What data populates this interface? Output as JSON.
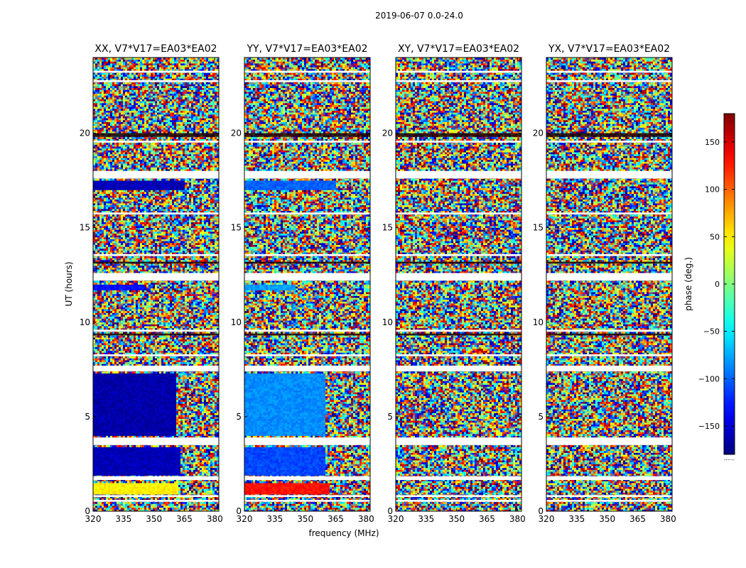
{
  "figure_title": "2019-06-07 0.0-24.0",
  "xlabel": "frequency (MHz)",
  "ylabel": "UT (hours)",
  "colorbar": {
    "label": "phase (deg.)",
    "range": [
      -180,
      180
    ],
    "ticks": [
      150,
      100,
      50,
      0,
      -50,
      -100,
      -150
    ],
    "tick_labels": [
      "150",
      "100",
      "50",
      "0",
      "−50",
      "−100",
      "−150"
    ],
    "colormap": "jet",
    "footer": "......"
  },
  "chart_data": [
    {
      "type": "heatmap",
      "title": "XX, V7*V17=EA03*EA02",
      "xlim": [
        320,
        382
      ],
      "ylim": [
        0,
        24
      ],
      "xticks": [
        320,
        335,
        350,
        365,
        380
      ],
      "yticks": [
        0,
        5,
        10,
        15,
        20
      ],
      "z": "phase (deg.)",
      "coherent_regions": [
        {
          "t": [
            0.9,
            1.5
          ],
          "f": [
            320,
            362
          ],
          "phase": 50
        },
        {
          "t": [
            1.9,
            3.4
          ],
          "f": [
            320,
            363
          ],
          "phase": -160
        },
        {
          "t": [
            4.0,
            7.3
          ],
          "f": [
            320,
            361
          ],
          "phase": -165
        },
        {
          "t": [
            11.7,
            12.0
          ],
          "f": [
            320,
            345
          ],
          "phase": -130
        },
        {
          "t": [
            17.0,
            17.5
          ],
          "f": [
            320,
            365
          ],
          "phase": -160
        }
      ]
    },
    {
      "type": "heatmap",
      "title": "YY, V7*V17=EA03*EA02",
      "xlim": [
        320,
        382
      ],
      "ylim": [
        0,
        24
      ],
      "xticks": [
        320,
        335,
        350,
        365,
        380
      ],
      "yticks": [
        0,
        5,
        10,
        15,
        20
      ],
      "z": "phase (deg.)",
      "coherent_regions": [
        {
          "t": [
            0.9,
            1.5
          ],
          "f": [
            320,
            362
          ],
          "phase": 130
        },
        {
          "t": [
            1.9,
            3.4
          ],
          "f": [
            320,
            360
          ],
          "phase": -110
        },
        {
          "t": [
            4.0,
            7.3
          ],
          "f": [
            320,
            360
          ],
          "phase": -85
        },
        {
          "t": [
            11.7,
            12.0
          ],
          "f": [
            320,
            345
          ],
          "phase": -80
        },
        {
          "t": [
            17.0,
            17.5
          ],
          "f": [
            320,
            365
          ],
          "phase": -100
        }
      ]
    },
    {
      "type": "heatmap",
      "title": "XY, V7*V17=EA03*EA02",
      "xlim": [
        320,
        382
      ],
      "ylim": [
        0,
        24
      ],
      "xticks": [
        320,
        335,
        350,
        365,
        380
      ],
      "yticks": [
        0,
        5,
        10,
        15,
        20
      ],
      "z": "phase (deg.)",
      "coherent_regions": []
    },
    {
      "type": "heatmap",
      "title": "YX, V7*V17=EA03*EA02",
      "xlim": [
        320,
        382
      ],
      "ylim": [
        0,
        24
      ],
      "xticks": [
        320,
        335,
        350,
        365,
        380
      ],
      "yticks": [
        0,
        5,
        10,
        15,
        20
      ],
      "z": "phase (deg.)",
      "coherent_regions": []
    }
  ]
}
